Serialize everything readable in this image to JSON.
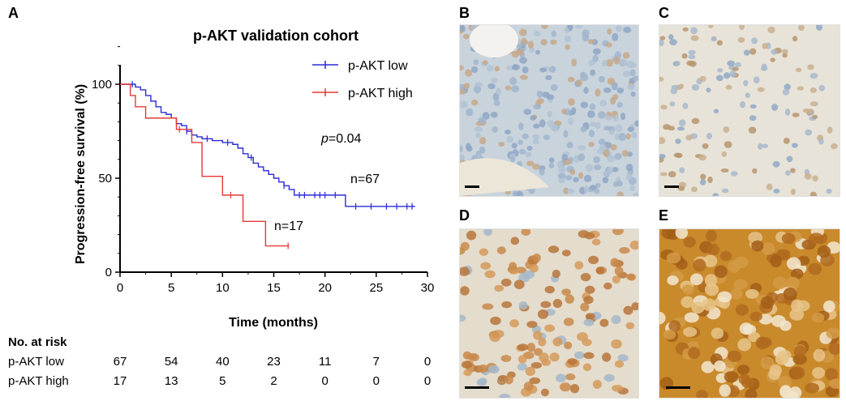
{
  "panels": {
    "a": "A",
    "b": "B",
    "c": "C",
    "d": "D",
    "e": "E"
  },
  "chart_data": {
    "type": "line",
    "step": true,
    "title": "p-AKT validation cohort",
    "xlabel": "Time (months)",
    "ylabel": "Progression-free survival (%)",
    "xlim": [
      0,
      30
    ],
    "ylim": [
      0,
      100
    ],
    "xticks": [
      "0",
      "5",
      "10",
      "15",
      "20",
      "25",
      "30"
    ],
    "yticks": [
      "0",
      "50",
      "100"
    ],
    "legend_position": "top-right",
    "p_value_label": "p",
    "p_value_text": "=0.04",
    "series": [
      {
        "name": "p-AKT low",
        "n_label": "n=67",
        "color": "#2b2bd6",
        "x": [
          0,
          1.5,
          2.0,
          2.5,
          3.0,
          3.5,
          4.0,
          4.5,
          5.0,
          5.5,
          6.0,
          6.5,
          7.0,
          7.5,
          8.0,
          9.0,
          10.0,
          11.0,
          11.5,
          12.0,
          12.5,
          13.0,
          13.5,
          14.0,
          14.5,
          15.0,
          15.5,
          16.0,
          16.5,
          17.0,
          22.0,
          28.8
        ],
        "y": [
          100,
          98.5,
          97,
          94,
          91,
          88,
          85,
          84,
          82,
          79,
          78,
          75,
          73,
          72,
          71,
          70,
          69,
          68,
          66,
          63,
          61,
          58,
          56,
          54,
          52,
          50,
          48,
          46,
          44,
          41,
          35,
          35
        ],
        "censor_x": [
          1.2,
          6.5,
          8.5,
          10.5,
          12.8,
          16.0,
          17.5,
          18.0,
          19.0,
          19.5,
          20.0,
          21.0,
          23.0,
          24.5,
          26.0,
          27.0,
          28.0,
          28.5
        ]
      },
      {
        "name": "p-AKT high",
        "n_label": "n=17",
        "color": "#e53935",
        "x": [
          0,
          1.0,
          1.5,
          2.5,
          5.5,
          7.0,
          8.0,
          9.5,
          10.0,
          12.0,
          14.2,
          16.5
        ],
        "y": [
          100,
          94,
          88,
          82,
          76,
          69,
          51,
          51,
          41,
          27,
          14,
          14
        ],
        "censor_x": [
          5.8,
          10.8,
          16.4
        ]
      }
    ],
    "risk_table": {
      "header": "No. at risk",
      "times": [
        0,
        5,
        10,
        15,
        20,
        25,
        30
      ],
      "rows": [
        {
          "label": "p-AKT low",
          "values": [
            "67",
            "54",
            "40",
            "23",
            "11",
            "7",
            "0"
          ]
        },
        {
          "label": "p-AKT high",
          "values": [
            "17",
            "13",
            "5",
            "2",
            "0",
            "0",
            "0"
          ]
        }
      ]
    }
  }
}
